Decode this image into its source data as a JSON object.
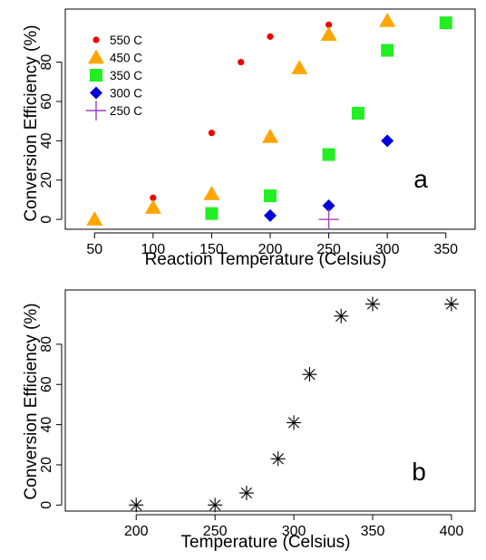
{
  "chart_data": [
    {
      "type": "scatter",
      "panel_label": "a",
      "xlabel": "Reaction Temperature (Celsius)",
      "ylabel": "Conversion Efficiency (%)",
      "xlim": [
        25,
        375
      ],
      "ylim": [
        -5,
        107
      ],
      "xticks": [
        50,
        100,
        150,
        200,
        250,
        300,
        350
      ],
      "yticks": [
        0,
        20,
        40,
        60,
        80
      ],
      "legend_position": "top-left",
      "series": [
        {
          "name": "550 C",
          "marker": "circle",
          "color": "#ee0000",
          "x": [
            50,
            100,
            150,
            175,
            200,
            250
          ],
          "y": [
            -1,
            11,
            44,
            80,
            93,
            99
          ]
        },
        {
          "name": "450 C",
          "marker": "triangle",
          "color": "#ffa500",
          "x": [
            50,
            100,
            150,
            200,
            225,
            250,
            300
          ],
          "y": [
            0,
            6,
            13,
            42,
            77,
            94,
            101
          ]
        },
        {
          "name": "350 C",
          "marker": "square",
          "color": "#22ee22",
          "x": [
            150,
            200,
            250,
            275,
            300,
            350
          ],
          "y": [
            3,
            12,
            33,
            54,
            86,
            100
          ]
        },
        {
          "name": "300 C",
          "marker": "diamond",
          "color": "#0000dd",
          "x": [
            200,
            250,
            300
          ],
          "y": [
            2,
            7,
            40
          ]
        },
        {
          "name": "250 C",
          "marker": "plus",
          "color": "#a040c0",
          "x": [
            250
          ],
          "y": [
            0
          ]
        }
      ]
    },
    {
      "type": "scatter",
      "panel_label": "b",
      "xlabel": "Temperature (Celsius)",
      "ylabel": "Conversion Efficiency (%)",
      "xlim": [
        155,
        415
      ],
      "ylim": [
        -3,
        107
      ],
      "xticks": [
        200,
        250,
        300,
        350,
        400
      ],
      "yticks": [
        0,
        20,
        40,
        60,
        80
      ],
      "series": [
        {
          "marker": "asterisk",
          "color": "#000000",
          "x": [
            200,
            250,
            270,
            290,
            300,
            310,
            330,
            350,
            400
          ],
          "y": [
            0,
            0,
            6,
            23,
            41,
            65,
            94,
            100,
            100
          ]
        }
      ]
    }
  ]
}
